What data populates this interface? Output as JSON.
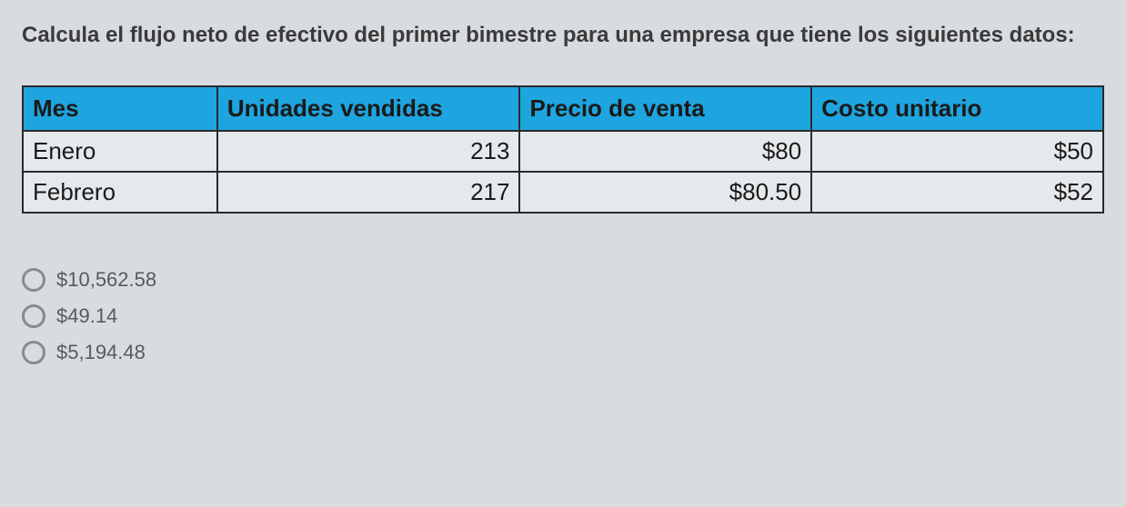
{
  "question": {
    "text": "Calcula el flujo neto de efectivo del primer bimestre para una empresa que tiene los siguientes datos:"
  },
  "table": {
    "header_bg_color": "#1ea5e0",
    "border_color": "#2a2a2a",
    "cell_bg_color": "#e6e9ec",
    "columns": [
      {
        "label": "Mes"
      },
      {
        "label": "Unidades vendidas"
      },
      {
        "label": "Precio de venta"
      },
      {
        "label": "Costo unitario"
      }
    ],
    "rows": [
      {
        "mes": "Enero",
        "unidades": "213",
        "precio": "$80",
        "costo": "$50"
      },
      {
        "mes": "Febrero",
        "unidades": "217",
        "precio": "$80.50",
        "costo": "$52"
      }
    ]
  },
  "options": [
    {
      "label": "$10,562.58"
    },
    {
      "label": "$49.14"
    },
    {
      "label": "$5,194.48"
    }
  ],
  "styles": {
    "background_color": "#d8dce0",
    "question_fontsize": 24,
    "table_header_fontsize": 26,
    "table_cell_fontsize": 26,
    "option_fontsize": 22,
    "radio_border_color": "#8a8a8a"
  }
}
